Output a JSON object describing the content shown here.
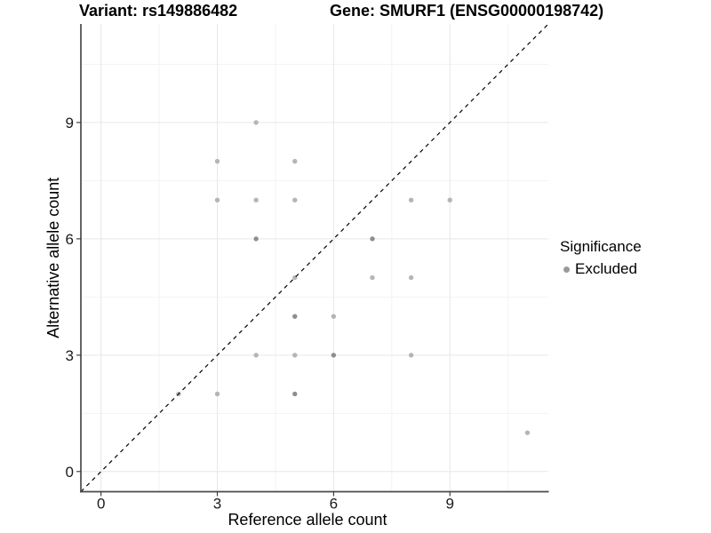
{
  "titles": {
    "left": "Variant: rs149886482",
    "right": "Gene: SMURF1 (ENSG00000198742)"
  },
  "chart_data": {
    "type": "scatter",
    "xlabel": "Reference allele count",
    "ylabel": "Alternative allele count",
    "xlim": [
      -0.52,
      11.54
    ],
    "ylim": [
      -0.52,
      11.54
    ],
    "x_ticks": [
      0,
      3,
      6,
      9
    ],
    "y_ticks": [
      0,
      3,
      6,
      9
    ],
    "minor_gridlines": [
      1.5,
      4.5,
      7.5,
      10.5
    ],
    "grid": true,
    "legend_position": "right",
    "reference_line": {
      "style": "dashed",
      "slope": 1,
      "intercept": 0,
      "color": "#000000"
    },
    "points": [
      {
        "x": 4,
        "y": 9,
        "shade": "light"
      },
      {
        "x": 3,
        "y": 8,
        "shade": "light"
      },
      {
        "x": 5,
        "y": 8,
        "shade": "light"
      },
      {
        "x": 3,
        "y": 7,
        "shade": "light"
      },
      {
        "x": 4,
        "y": 7,
        "shade": "light"
      },
      {
        "x": 5,
        "y": 7,
        "shade": "light"
      },
      {
        "x": 8,
        "y": 7,
        "shade": "light"
      },
      {
        "x": 9,
        "y": 7,
        "shade": "light"
      },
      {
        "x": 4,
        "y": 6,
        "shade": "dark"
      },
      {
        "x": 7,
        "y": 6,
        "shade": "dark"
      },
      {
        "x": 5,
        "y": 5,
        "shade": "light"
      },
      {
        "x": 7,
        "y": 5,
        "shade": "light"
      },
      {
        "x": 8,
        "y": 5,
        "shade": "light"
      },
      {
        "x": 5,
        "y": 4,
        "shade": "dark"
      },
      {
        "x": 6,
        "y": 4,
        "shade": "light"
      },
      {
        "x": 4,
        "y": 3,
        "shade": "light"
      },
      {
        "x": 5,
        "y": 3,
        "shade": "light"
      },
      {
        "x": 6,
        "y": 3,
        "shade": "dark"
      },
      {
        "x": 8,
        "y": 3,
        "shade": "light"
      },
      {
        "x": 2,
        "y": 2,
        "shade": "light"
      },
      {
        "x": 3,
        "y": 2,
        "shade": "light"
      },
      {
        "x": 5,
        "y": 2,
        "shade": "dark"
      },
      {
        "x": 11,
        "y": 1,
        "shade": "light"
      }
    ],
    "point_colors": {
      "light": "#b5b5b5",
      "dark": "#8e8e8e"
    },
    "style_colors": {
      "grid_major": "#e7e7e7",
      "grid_minor": "#f3f3f3",
      "axis_line": "#4a4a4a",
      "tick_mark": "#333333",
      "tick_label": "#1a1a1a",
      "text": "#000000"
    },
    "legend": {
      "title": "Significance",
      "items": [
        {
          "label": "Excluded",
          "color": "#9a9a9a"
        }
      ]
    }
  }
}
